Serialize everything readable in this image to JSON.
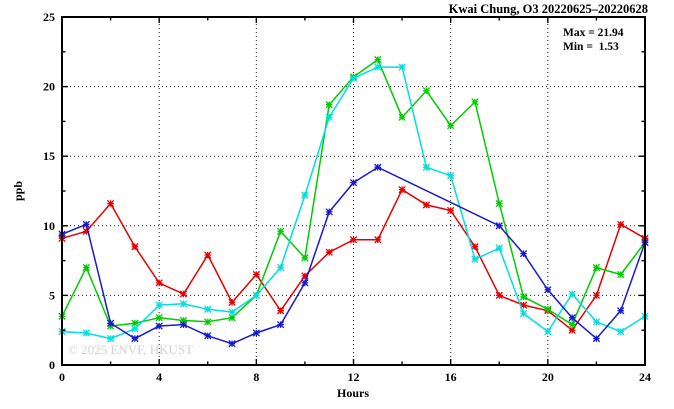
{
  "header": {
    "title": "Kwai Chung, O3 20220625–20220628"
  },
  "annotations": {
    "max_label": "Max = 21.94",
    "min_label": "Min =  1.53"
  },
  "watermark": {
    "text": "© 2025 ENVF, HKUST"
  },
  "chart_data": {
    "type": "line",
    "title": "Kwai Chung, O3 20220625–20220628",
    "xlabel": "Hours",
    "ylabel": "ppb",
    "xlim": [
      0,
      24
    ],
    "ylim": [
      0,
      25
    ],
    "x_major_ticks": [
      0,
      4,
      8,
      12,
      16,
      20,
      24
    ],
    "x_minor_tick_step": 2,
    "y_major_ticks": [
      0,
      5,
      10,
      15,
      20,
      25
    ],
    "y_minor_tick_step": 2.5,
    "grid": "dotted-at-major-ticks",
    "legend": "none",
    "marker": "star",
    "x": [
      0,
      1,
      2,
      3,
      4,
      5,
      6,
      7,
      8,
      9,
      10,
      11,
      12,
      13,
      14,
      15,
      16,
      17,
      18,
      19,
      20,
      21,
      22,
      23,
      24
    ],
    "series": [
      {
        "name": "red",
        "color": "#e60000",
        "values": [
          9.1,
          9.6,
          11.6,
          8.5,
          5.9,
          5.1,
          7.9,
          4.5,
          6.5,
          3.9,
          6.4,
          8.1,
          9.0,
          9.0,
          12.6,
          11.5,
          11.1,
          8.5,
          5.0,
          4.3,
          3.9,
          2.5,
          5.0,
          10.1,
          9.1
        ]
      },
      {
        "name": "green",
        "color": "#00cd00",
        "values": [
          3.5,
          7.0,
          2.8,
          3.0,
          3.4,
          3.2,
          3.1,
          3.4,
          5.0,
          9.6,
          7.7,
          18.7,
          20.7,
          21.94,
          17.8,
          19.7,
          17.2,
          18.9,
          11.6,
          4.9,
          4.0,
          2.9,
          7.0,
          6.5,
          8.8
        ]
      },
      {
        "name": "cyan",
        "color": "#00dfdf",
        "values": [
          2.4,
          2.3,
          1.9,
          2.6,
          4.3,
          4.4,
          4.0,
          3.8,
          5.0,
          7.0,
          12.2,
          17.8,
          20.6,
          21.4,
          21.4,
          14.2,
          13.6,
          7.6,
          8.4,
          3.7,
          2.4,
          5.1,
          3.1,
          2.4,
          3.5
        ]
      },
      {
        "name": "blue",
        "color": "#1a1acd",
        "values": [
          9.4,
          10.1,
          3.0,
          1.9,
          2.8,
          2.9,
          2.1,
          1.53,
          2.3,
          2.9,
          5.9,
          11.0,
          13.1,
          14.2,
          null,
          null,
          null,
          null,
          10.0,
          8.0,
          5.4,
          3.4,
          1.9,
          3.9,
          8.8
        ]
      }
    ],
    "stats": {
      "max": 21.94,
      "min": 1.53
    }
  }
}
